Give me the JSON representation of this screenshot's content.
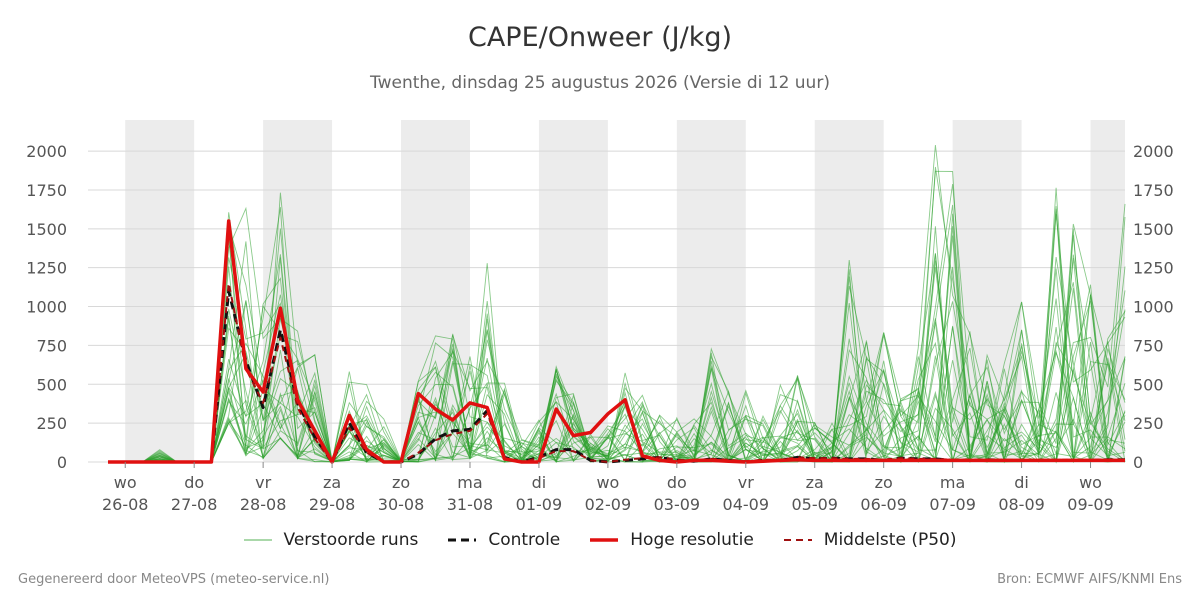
{
  "chart_data": {
    "type": "line",
    "title": "CAPE/Onweer (J/kg)",
    "subtitle": "Twenthe, dinsdag 25 augustus 2026 (Versie di 12 uur)",
    "xlabel": "",
    "ylabel": "",
    "ylim": [
      0,
      2200
    ],
    "xlim": [
      -0.25,
      14.5
    ],
    "y_ticks": [
      0,
      250,
      500,
      750,
      1000,
      1250,
      1500,
      1750,
      2000
    ],
    "y_tick_labels": [
      "0",
      "250",
      "500",
      "750",
      "1000",
      "1250",
      "1500",
      "1750",
      "2000"
    ],
    "grid": true,
    "x_ticks": [
      {
        "pos": 0,
        "day": "wo",
        "date": "26-08"
      },
      {
        "pos": 1,
        "day": "do",
        "date": "27-08"
      },
      {
        "pos": 2,
        "day": "vr",
        "date": "28-08"
      },
      {
        "pos": 3,
        "day": "za",
        "date": "29-08"
      },
      {
        "pos": 4,
        "day": "zo",
        "date": "30-08"
      },
      {
        "pos": 5,
        "day": "ma",
        "date": "31-08"
      },
      {
        "pos": 6,
        "day": "di",
        "date": "01-09"
      },
      {
        "pos": 7,
        "day": "wo",
        "date": "02-09"
      },
      {
        "pos": 8,
        "day": "do",
        "date": "03-09"
      },
      {
        "pos": 9,
        "day": "vr",
        "date": "04-09"
      },
      {
        "pos": 10,
        "day": "za",
        "date": "05-09"
      },
      {
        "pos": 11,
        "day": "zo",
        "date": "06-09"
      },
      {
        "pos": 12,
        "day": "ma",
        "date": "07-09"
      },
      {
        "pos": 13,
        "day": "di",
        "date": "08-09"
      },
      {
        "pos": 14,
        "day": "wo",
        "date": "09-09"
      }
    ],
    "night_bands": [
      [
        0,
        1
      ],
      [
        2,
        3
      ],
      [
        4,
        5
      ],
      [
        6,
        7
      ],
      [
        8,
        9
      ],
      [
        10,
        11
      ],
      [
        12,
        13
      ],
      [
        14,
        14.5
      ]
    ],
    "legend": [
      {
        "label": "Verstoorde runs",
        "color": "#2ca02c",
        "style": "thin"
      },
      {
        "label": "Controle",
        "color": "#111111",
        "style": "dashed"
      },
      {
        "label": "Hoge resolutie",
        "color": "#e01010",
        "style": "solid"
      },
      {
        "label": "Middelste (P50)",
        "color": "#a01010",
        "style": "dashed-thin"
      }
    ],
    "series": [
      {
        "name": "Hoge resolutie",
        "color": "#e01010",
        "x": [
          -0.25,
          0,
          0.25,
          0.5,
          0.75,
          1,
          1.25,
          1.5,
          1.75,
          2,
          2.25,
          2.5,
          2.75,
          3,
          3.25,
          3.5,
          3.75,
          4,
          4.25,
          4.5,
          4.75,
          5,
          5.25,
          5.5,
          5.75,
          6,
          6.25,
          6.5,
          6.75,
          7,
          7.25,
          7.5,
          7.75,
          8,
          8.25,
          8.5,
          8.75,
          9,
          9.25,
          9.5,
          9.75,
          10,
          10.25,
          10.5,
          10.75,
          11,
          11.25,
          11.5,
          11.75,
          12,
          12.25,
          12.5,
          12.75,
          13,
          13.25,
          13.5,
          13.75,
          14,
          14.25,
          14.5
        ],
        "values": [
          0,
          0,
          0,
          0,
          0,
          0,
          0,
          1550,
          600,
          450,
          990,
          400,
          200,
          0,
          300,
          80,
          0,
          0,
          440,
          340,
          270,
          380,
          350,
          20,
          0,
          0,
          340,
          170,
          190,
          310,
          400,
          40,
          10,
          0,
          10,
          10,
          5,
          0,
          5,
          10,
          15,
          10,
          10,
          10,
          10,
          10,
          10,
          10,
          10,
          10,
          10,
          10,
          10,
          10,
          10,
          10,
          10,
          10,
          10,
          10
        ]
      },
      {
        "name": "Controle",
        "color": "#111111",
        "x": [
          -0.25,
          0,
          0.25,
          0.5,
          0.75,
          1,
          1.25,
          1.5,
          1.75,
          2,
          2.25,
          2.5,
          2.75,
          3,
          3.25,
          3.5,
          3.75,
          4,
          4.25,
          4.5,
          4.75,
          5,
          5.25,
          5.5,
          5.75,
          6,
          6.25,
          6.5,
          6.75,
          7,
          7.25,
          7.5,
          7.75,
          8,
          8.25,
          8.5,
          8.75,
          9,
          9.25,
          9.5,
          9.75,
          10,
          10.25,
          10.5,
          10.75,
          11,
          11.25,
          11.5,
          11.75,
          12,
          12.25,
          12.5,
          12.75,
          13,
          13.25,
          13.5,
          13.75,
          14,
          14.25,
          14.5
        ],
        "values": [
          0,
          0,
          0,
          0,
          0,
          0,
          0,
          1100,
          650,
          350,
          850,
          380,
          160,
          0,
          250,
          60,
          0,
          0,
          50,
          150,
          200,
          210,
          330,
          30,
          0,
          30,
          80,
          80,
          10,
          0,
          10,
          20,
          30,
          10,
          5,
          20,
          10,
          0,
          10,
          10,
          30,
          20,
          25,
          20,
          20,
          10,
          25,
          20,
          20,
          10,
          10,
          15,
          10,
          10,
          10,
          10,
          10,
          10,
          15,
          15
        ]
      },
      {
        "name": "Middelste (P50)",
        "color": "#a01010",
        "x": [
          -0.25,
          0,
          0.25,
          0.5,
          0.75,
          1,
          1.25,
          1.5,
          1.75,
          2,
          2.25,
          2.5,
          2.75,
          3,
          3.25,
          3.5,
          3.75,
          4,
          4.25,
          4.5,
          4.75,
          5,
          5.25,
          5.5,
          5.75,
          6,
          6.25,
          6.5,
          6.75,
          7,
          7.25,
          7.5,
          7.75,
          8,
          8.25,
          8.5,
          8.75,
          9,
          9.25,
          9.5,
          9.75,
          10,
          10.25,
          10.5,
          10.75,
          11,
          11.25,
          11.5,
          11.75,
          12,
          12.25,
          12.5,
          12.75,
          13,
          13.25,
          13.5,
          13.75,
          14,
          14.25,
          14.5
        ],
        "values": [
          0,
          0,
          0,
          0,
          0,
          0,
          0,
          1150,
          600,
          380,
          800,
          350,
          150,
          0,
          220,
          60,
          0,
          0,
          60,
          140,
          180,
          200,
          310,
          25,
          0,
          25,
          70,
          70,
          10,
          0,
          15,
          25,
          30,
          15,
          10,
          20,
          15,
          5,
          15,
          15,
          30,
          25,
          25,
          20,
          20,
          15,
          25,
          20,
          20,
          15,
          15,
          15,
          15,
          15,
          15,
          15,
          15,
          15,
          15,
          15
        ]
      }
    ],
    "ensemble": {
      "name": "Verstoorde runs",
      "color": "#2ca02c",
      "count": 30,
      "envelope_low": [
        0,
        0,
        0,
        0,
        0,
        0,
        0,
        250,
        40,
        20,
        150,
        20,
        0,
        0,
        10,
        0,
        0,
        0,
        0,
        10,
        10,
        20,
        20,
        0,
        0,
        0,
        0,
        0,
        0,
        0,
        0,
        0,
        0,
        0,
        0,
        0,
        0,
        0,
        0,
        0,
        0,
        0,
        0,
        0,
        0,
        0,
        0,
        0,
        0,
        0,
        0,
        0,
        0,
        0,
        0,
        0,
        0,
        0,
        0,
        0
      ],
      "envelope_high": [
        0,
        0,
        0,
        80,
        0,
        0,
        0,
        1650,
        1650,
        1250,
        1840,
        930,
        750,
        10,
        660,
        500,
        350,
        20,
        630,
        880,
        860,
        750,
        1310,
        650,
        150,
        280,
        640,
        450,
        200,
        280,
        580,
        480,
        330,
        320,
        280,
        780,
        480,
        500,
        300,
        500,
        630,
        320,
        250,
        1440,
        810,
        850,
        500,
        740,
        2190,
        2110,
        870,
        700,
        650,
        1110,
        440,
        1830,
        1640,
        1220,
        800,
        1670
      ]
    }
  },
  "legend_labels": {
    "runs": "Verstoorde runs",
    "control": "Controle",
    "hires": "Hoge resolutie",
    "median": "Middelste (P50)"
  },
  "footer": {
    "left": "Gegenereerd door MeteoVPS (meteo-service.nl)",
    "right": "Bron: ECMWF AIFS/KNMI Ens"
  }
}
